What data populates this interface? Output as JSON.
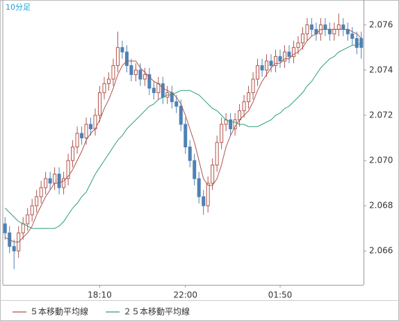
{
  "chart_data": {
    "type": "candlestick",
    "title": "10分足",
    "categories": [
      null,
      null,
      null,
      null,
      null,
      null,
      null,
      null,
      null,
      null,
      null,
      null,
      null,
      null,
      null,
      null,
      null,
      null,
      null,
      null,
      null,
      "18:10",
      null,
      null,
      null,
      null,
      null,
      null,
      null,
      null,
      null,
      null,
      null,
      null,
      null,
      null,
      null,
      null,
      null,
      null,
      "22:00",
      null,
      null,
      null,
      null,
      null,
      null,
      null,
      null,
      null,
      null,
      null,
      null,
      null,
      null,
      null,
      null,
      null,
      null,
      null,
      null,
      "01:50",
      null,
      null,
      null,
      null,
      null,
      null,
      null,
      null,
      null,
      null,
      null,
      null,
      null,
      null,
      null,
      null,
      null,
      null
    ],
    "open": [
      2.0672,
      2.0668,
      2.0662,
      2.066,
      2.0668,
      2.0672,
      2.0676,
      2.068,
      2.0684,
      2.0688,
      2.0692,
      2.069,
      2.0694,
      2.0688,
      2.0692,
      2.07,
      2.0706,
      2.0712,
      2.071,
      2.0716,
      2.0714,
      2.072,
      2.073,
      2.0734,
      2.0736,
      2.0742,
      2.075,
      2.0748,
      2.0742,
      2.0738,
      2.074,
      2.0736,
      2.0738,
      2.0732,
      2.073,
      2.0734,
      2.0728,
      2.073,
      2.0726,
      2.0724,
      2.0716,
      2.0706,
      2.07,
      2.0692,
      2.0684,
      2.068,
      2.069,
      2.0698,
      2.0708,
      2.0716,
      2.0718,
      2.0714,
      2.0718,
      2.0722,
      2.0726,
      2.073,
      2.0736,
      2.0742,
      2.074,
      2.0744,
      2.0742,
      2.0746,
      2.0744,
      2.0748,
      2.0746,
      2.075,
      2.0752,
      2.0756,
      2.076,
      2.0758,
      2.0756,
      2.076,
      2.0758,
      2.0756,
      2.0758,
      2.076,
      2.0758,
      2.0756,
      2.0754,
      2.0754
    ],
    "high": [
      2.0675,
      2.0671,
      2.0665,
      2.0671,
      2.0675,
      2.0679,
      2.0683,
      2.0687,
      2.0691,
      2.0695,
      2.0695,
      2.0697,
      2.0697,
      2.0695,
      2.0703,
      2.0709,
      2.0715,
      2.0715,
      2.0719,
      2.0719,
      2.0723,
      2.0733,
      2.0737,
      2.0739,
      2.0745,
      2.0757,
      2.0753,
      2.0751,
      2.0745,
      2.0743,
      2.0743,
      2.0741,
      2.0741,
      2.0735,
      2.0737,
      2.0737,
      2.0733,
      2.0733,
      2.0729,
      2.0727,
      2.0719,
      2.0709,
      2.0703,
      2.0695,
      2.0687,
      2.0693,
      2.0701,
      2.0711,
      2.0719,
      2.0721,
      2.0721,
      2.0721,
      2.0725,
      2.0729,
      2.0733,
      2.0739,
      2.0745,
      2.0745,
      2.0747,
      2.0747,
      2.0749,
      2.0749,
      2.0751,
      2.0751,
      2.0753,
      2.0755,
      2.0759,
      2.0763,
      2.0763,
      2.0761,
      2.0763,
      2.0763,
      2.0761,
      2.0761,
      2.0765,
      2.0763,
      2.0761,
      2.0759,
      2.0757,
      2.0757
    ],
    "low": [
      2.0665,
      2.0659,
      2.0652,
      2.0657,
      2.0665,
      2.0669,
      2.0673,
      2.0677,
      2.0681,
      2.0685,
      2.0687,
      2.0687,
      2.0685,
      2.0685,
      2.0689,
      2.0697,
      2.0703,
      2.0707,
      2.0707,
      2.0711,
      2.0711,
      2.0717,
      2.0727,
      2.0731,
      2.0733,
      2.0739,
      2.0745,
      2.0739,
      2.0735,
      2.0735,
      2.0733,
      2.0733,
      2.0729,
      2.0727,
      2.0727,
      2.0725,
      2.0725,
      2.0723,
      2.0721,
      2.0713,
      2.0703,
      2.0697,
      2.0689,
      2.0681,
      2.0676,
      2.0677,
      2.0687,
      2.0695,
      2.0705,
      2.0713,
      2.0711,
      2.0711,
      2.0715,
      2.0719,
      2.0723,
      2.0727,
      2.0733,
      2.0737,
      2.0737,
      2.0739,
      2.0739,
      2.0741,
      2.0741,
      2.0743,
      2.0743,
      2.0747,
      2.0749,
      2.0753,
      2.0755,
      2.0753,
      2.0753,
      2.0755,
      2.0753,
      2.0753,
      2.0755,
      2.0755,
      2.0753,
      2.0751,
      2.0747,
      2.0745
    ],
    "close": [
      2.0668,
      2.0662,
      2.066,
      2.0668,
      2.0672,
      2.0676,
      2.068,
      2.0684,
      2.0688,
      2.0692,
      2.069,
      2.0694,
      2.0688,
      2.0692,
      2.07,
      2.0706,
      2.0712,
      2.071,
      2.0716,
      2.0714,
      2.072,
      2.073,
      2.0734,
      2.0736,
      2.0742,
      2.075,
      2.0748,
      2.0742,
      2.0738,
      2.074,
      2.0736,
      2.0738,
      2.0732,
      2.073,
      2.0734,
      2.0728,
      2.073,
      2.0726,
      2.0724,
      2.0716,
      2.0706,
      2.07,
      2.0692,
      2.0684,
      2.068,
      2.069,
      2.0698,
      2.0708,
      2.0716,
      2.0718,
      2.0714,
      2.0718,
      2.0722,
      2.0726,
      2.073,
      2.0736,
      2.0742,
      2.074,
      2.0744,
      2.0742,
      2.0746,
      2.0744,
      2.0748,
      2.0746,
      2.075,
      2.0752,
      2.0756,
      2.076,
      2.0758,
      2.0756,
      2.076,
      2.0758,
      2.0756,
      2.0758,
      2.076,
      2.0758,
      2.0756,
      2.0754,
      2.075,
      2.075
    ],
    "series": [
      {
        "name": "５本移動平均線",
        "color": "#b0524a",
        "values": [
          2.0666,
          2.0665,
          2.0664,
          2.0664,
          2.0666,
          2.0668,
          2.0671,
          2.0676,
          2.068,
          2.0684,
          2.0687,
          2.069,
          2.069,
          2.0691,
          2.0693,
          2.0696,
          2.07,
          2.0704,
          2.0709,
          2.0712,
          2.0714,
          2.0718,
          2.0723,
          2.0727,
          2.0732,
          2.0738,
          2.0742,
          2.0744,
          2.0744,
          2.0744,
          2.0741,
          2.0739,
          2.0737,
          2.0735,
          2.0734,
          2.0732,
          2.0731,
          2.073,
          2.0728,
          2.0725,
          2.072,
          2.0714,
          2.0708,
          2.07,
          2.0692,
          2.0689,
          2.0689,
          2.0692,
          2.0698,
          2.0706,
          2.0711,
          2.0715,
          2.0718,
          2.072,
          2.0722,
          2.0726,
          2.0731,
          2.0735,
          2.0738,
          2.0741,
          2.0743,
          2.0743,
          2.0745,
          2.0745,
          2.0747,
          2.0748,
          2.075,
          2.0753,
          2.0755,
          2.0756,
          2.0758,
          2.0758,
          2.0758,
          2.0758,
          2.0758,
          2.0758,
          2.0758,
          2.0757,
          2.0756,
          2.0754
        ]
      },
      {
        "name": "２５本移動平均線",
        "color": "#2a9d78",
        "values": [
          2.0679,
          2.0677,
          2.0675,
          2.0673,
          2.0672,
          2.0671,
          2.067,
          2.067,
          2.067,
          2.067,
          2.067,
          2.067,
          2.0671,
          2.0673,
          2.0676,
          2.0679,
          2.0681,
          2.0684,
          2.0686,
          2.069,
          2.0694,
          2.0697,
          2.07,
          2.0703,
          2.0706,
          2.0709,
          2.0711,
          2.0714,
          2.0716,
          2.0718,
          2.072,
          2.0722,
          2.0724,
          2.0725,
          2.0727,
          2.0728,
          2.0729,
          2.0729,
          2.073,
          2.0731,
          2.0731,
          2.0731,
          2.073,
          2.0729,
          2.0727,
          2.0725,
          2.0723,
          2.0722,
          2.072,
          2.0718,
          2.0717,
          2.0717,
          2.0716,
          2.0716,
          2.0715,
          2.0715,
          2.0715,
          2.0716,
          2.0717,
          2.0718,
          2.072,
          2.0721,
          2.0723,
          2.0724,
          2.0726,
          2.0728,
          2.073,
          2.0733,
          2.0735,
          2.0738,
          2.0741,
          2.0743,
          2.0745,
          2.0746,
          2.0748,
          2.0749,
          2.075,
          2.0751,
          2.0751,
          2.0752
        ]
      }
    ],
    "up_color": "#b0524a",
    "down_color": "#4f81b4",
    "ylim": [
      2.0645,
      2.0771
    ],
    "yticks": [
      2.066,
      2.068,
      {
        "value": 2.07,
        "label": "2.070"
      },
      2.072,
      2.074,
      2.076
    ],
    "grid": false,
    "legend": "bottom"
  }
}
